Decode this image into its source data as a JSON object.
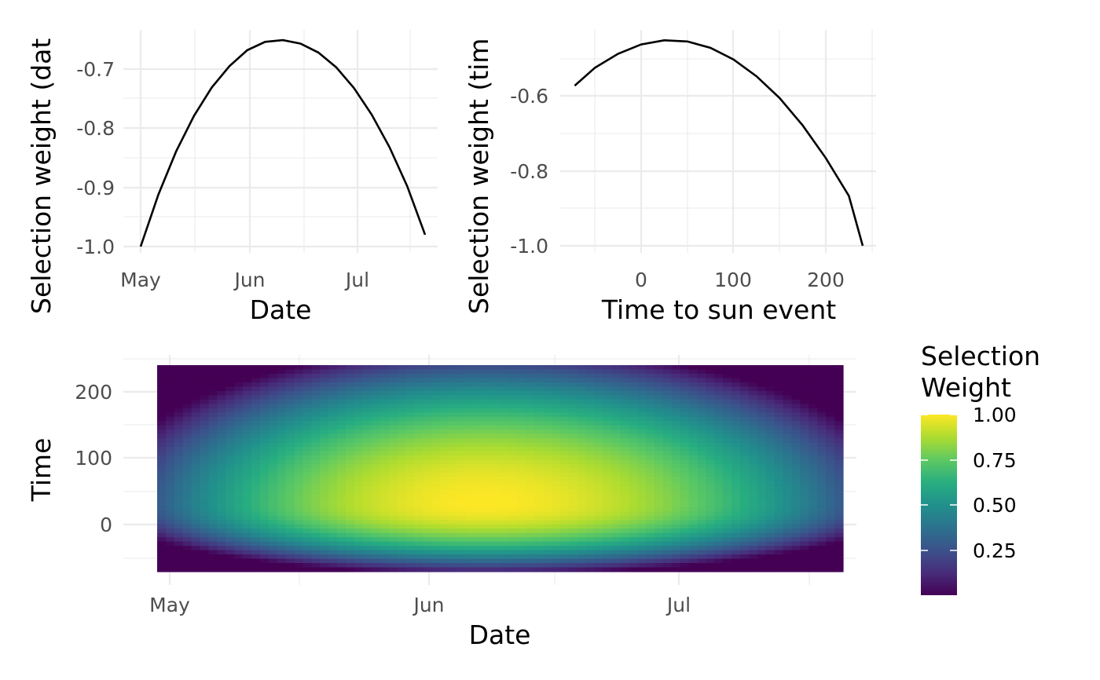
{
  "chart_data": [
    {
      "type": "line",
      "xlabel": "Date",
      "ylabel": "Selection weight (dat",
      "x_ticks": [
        "May",
        "Jun",
        "Jul"
      ],
      "x_tick_dates": [
        "2024-05-01",
        "2024-06-01",
        "2024-07-01"
      ],
      "x": [
        "2024-05-01",
        "2024-05-06",
        "2024-05-11",
        "2024-05-16",
        "2024-05-21",
        "2024-05-26",
        "2024-05-31",
        "2024-06-05",
        "2024-06-10",
        "2024-06-15",
        "2024-06-20",
        "2024-06-25",
        "2024-06-30",
        "2024-07-05",
        "2024-07-10",
        "2024-07-15",
        "2024-07-20"
      ],
      "y": [
        -1.0,
        -0.912,
        -0.839,
        -0.779,
        -0.731,
        -0.695,
        -0.668,
        -0.654,
        -0.651,
        -0.657,
        -0.672,
        -0.697,
        -0.732,
        -0.777,
        -0.832,
        -0.898,
        -0.98
      ],
      "y_ticks": [
        "-0.7",
        "-0.8",
        "-0.9",
        "-1.0"
      ],
      "ylim": [
        -1.0,
        -0.65
      ],
      "grid": true
    },
    {
      "type": "line",
      "xlabel": "Time to sun event",
      "ylabel": "Selection weight (tim",
      "x_ticks": [
        "0",
        "100",
        "200"
      ],
      "x": [
        -72,
        -50,
        -25,
        0,
        25,
        50,
        75,
        100,
        125,
        150,
        175,
        200,
        225,
        240
      ],
      "y": [
        -0.573,
        -0.525,
        -0.488,
        -0.463,
        -0.452,
        -0.455,
        -0.472,
        -0.503,
        -0.548,
        -0.606,
        -0.679,
        -0.766,
        -0.867,
        -1.0
      ],
      "y_ticks": [
        "-0.6",
        "-0.8",
        "-1.0"
      ],
      "ylim": [
        -1.0,
        -0.45
      ],
      "grid": true
    },
    {
      "type": "heatmap",
      "xlabel": "Date",
      "ylabel": "Time",
      "x_ticks": [
        "May",
        "Jun",
        "Jul"
      ],
      "x_tick_dates": [
        "2024-05-01",
        "2024-06-01",
        "2024-07-01"
      ],
      "x_range": [
        "2024-04-30",
        "2024-07-21"
      ],
      "y_ticks": [
        "200",
        "100",
        "0"
      ],
      "y_range": [
        -72,
        240
      ],
      "peak": {
        "date": "2024-06-08",
        "time": 30,
        "value": 1.0
      },
      "legend": {
        "title_line1": "Selection",
        "title_line2": "Weight",
        "labels": [
          "1.00",
          "0.75",
          "0.50",
          "0.25"
        ],
        "placement": "right"
      },
      "colormap": "viridis",
      "grid": true
    }
  ]
}
